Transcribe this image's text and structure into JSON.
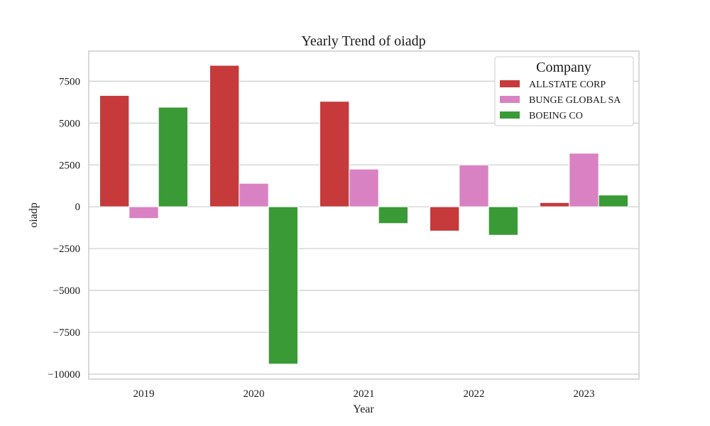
{
  "chart_data": {
    "type": "bar",
    "title": "Yearly Trend of oiadp",
    "xlabel": "Year",
    "ylabel": "oiadp",
    "categories": [
      "2019",
      "2020",
      "2021",
      "2022",
      "2023"
    ],
    "series": [
      {
        "name": "ALLSTATE CORP",
        "color": "#c63a3b",
        "values": [
          6650,
          8450,
          6300,
          -1450,
          250
        ]
      },
      {
        "name": "BUNGE GLOBAL SA",
        "color": "#d982c3",
        "values": [
          -700,
          1400,
          2250,
          2500,
          3200
        ]
      },
      {
        "name": "BOEING CO",
        "color": "#3a9a36",
        "values": [
          5950,
          -9400,
          -1000,
          -1700,
          700
        ]
      }
    ],
    "ylim": [
      -10300,
      9300
    ],
    "yticks": [
      -10000,
      -7500,
      -5000,
      -2500,
      0,
      2500,
      5000,
      7500
    ],
    "ytick_labels": [
      "−10000",
      "−7500",
      "−5000",
      "−2500",
      "0",
      "2500",
      "5000",
      "7500"
    ],
    "legend": {
      "title": "Company",
      "position": "top-right"
    },
    "grid": true
  }
}
